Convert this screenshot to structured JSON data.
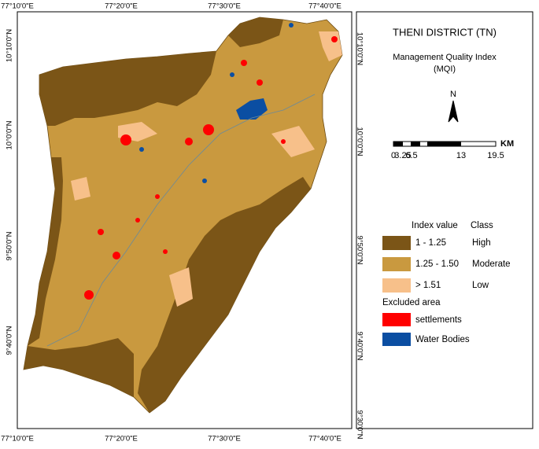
{
  "map": {
    "title": "THENI DISTRICT (TN)",
    "subtitle": "Management Quality Index",
    "subtitle2": "(MQI)",
    "north": "N",
    "scale_unit": "KM",
    "scale_labels": [
      "0",
      "3.25",
      "6.5",
      "13",
      "19.5"
    ],
    "top_labels": [
      "77°10'0\"E",
      "77°20'0\"E",
      "77°30'0\"E",
      "77°40'0\"E"
    ],
    "bottom_labels": [
      "77°10'0\"E",
      "77°20'0\"E",
      "77°30'0\"E",
      "77°40'0\"E"
    ],
    "left_labels": [
      "10°10'0\"N",
      "10°0'0\"N",
      "9°50'0\"N",
      "9°40'0\"N"
    ],
    "right_labels": [
      "10°10'0\"N",
      "10°0'0\"N",
      "9°50'0\"N",
      "9°40'0\"N",
      "9°30'0\"N"
    ]
  },
  "legend": {
    "header_value": "Index value",
    "header_class": "Class",
    "items": [
      {
        "value": "1 - 1.25",
        "class": "High",
        "color": "#7b5517"
      },
      {
        "value": "1.25 - 1.50",
        "class": "Moderate",
        "color": "#c9993f"
      },
      {
        "value": "> 1.51",
        "class": "Low",
        "color": "#f7c08a"
      }
    ],
    "excluded_title": "Excluded area",
    "excluded": [
      {
        "label": "settlements",
        "color": "#ff0000"
      },
      {
        "label": "Water Bodies",
        "color": "#0b4ea2"
      }
    ]
  }
}
